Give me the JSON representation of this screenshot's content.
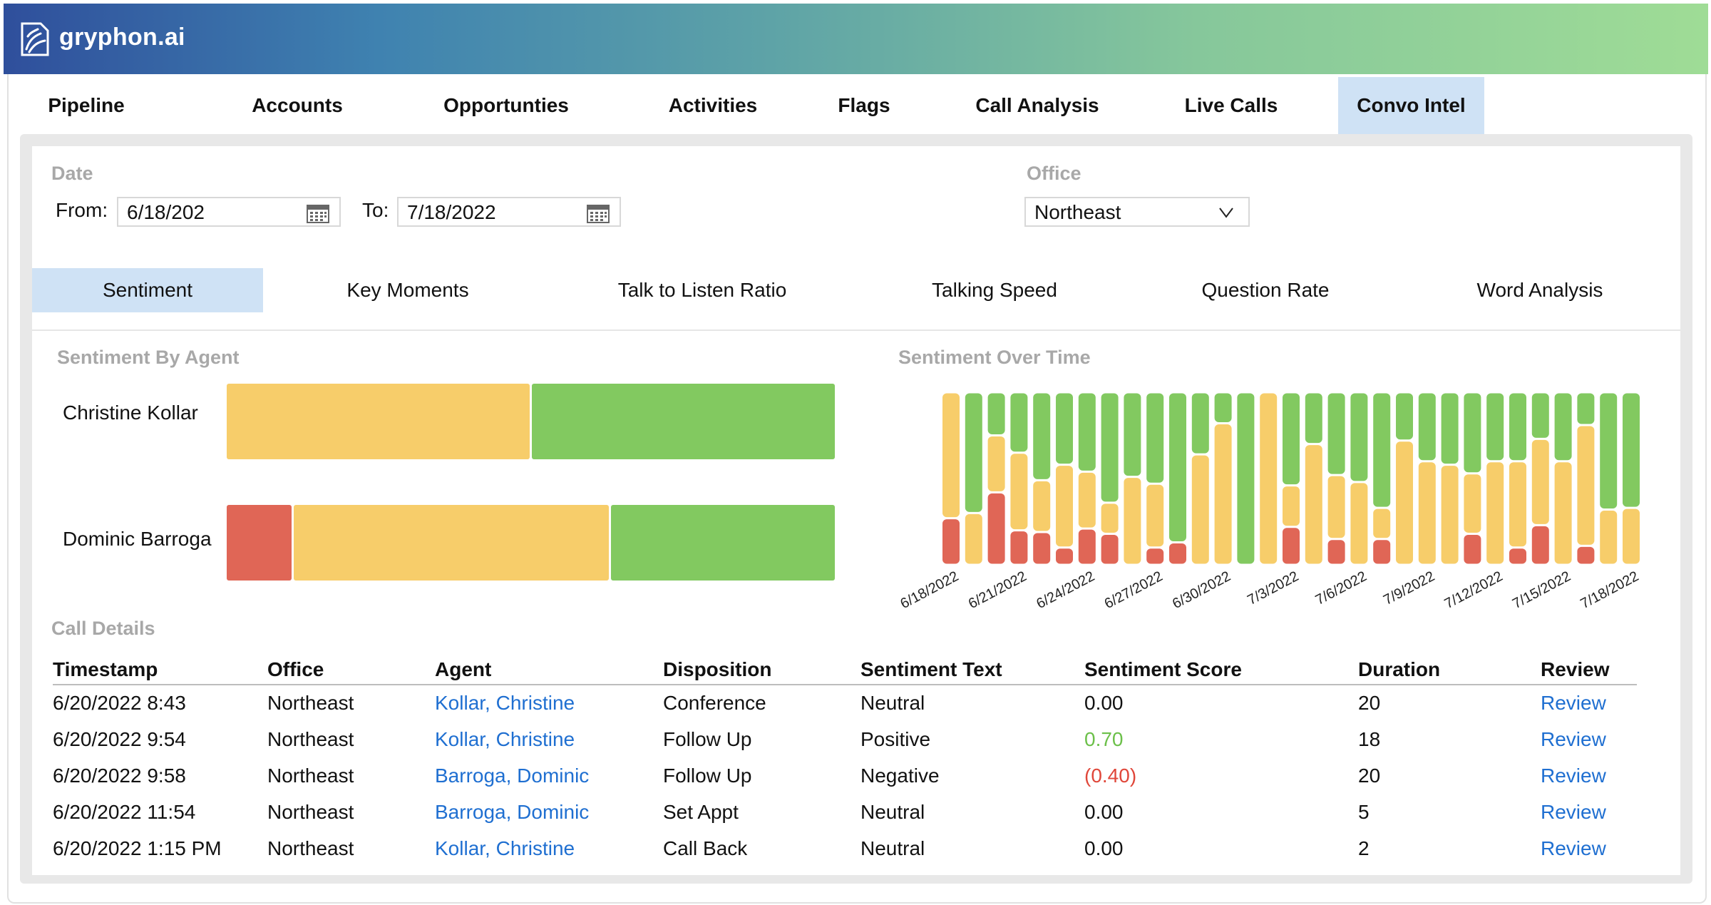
{
  "app": {
    "brand": "gryphon.ai"
  },
  "main_nav": {
    "tabs": [
      {
        "label": "Pipeline",
        "active": false
      },
      {
        "label": "Accounts",
        "active": false
      },
      {
        "label": "Opportunties",
        "active": false
      },
      {
        "label": "Activities",
        "active": false
      },
      {
        "label": "Flags",
        "active": false
      },
      {
        "label": "Call Analysis",
        "active": false
      },
      {
        "label": "Live Calls",
        "active": false
      },
      {
        "label": "Convo Intel",
        "active": true
      }
    ]
  },
  "filters": {
    "date_label": "Date",
    "from_label": "From:",
    "from_value": "6/18/202",
    "to_label": "To:",
    "to_value": "7/18/2022",
    "office_label": "Office",
    "office_value": "Northeast"
  },
  "sub_tabs": [
    {
      "label": "Sentiment",
      "active": true
    },
    {
      "label": "Key Moments",
      "active": false
    },
    {
      "label": "Talk to Listen Ratio",
      "active": false
    },
    {
      "label": "Talking Speed",
      "active": false
    },
    {
      "label": "Question Rate",
      "active": false
    },
    {
      "label": "Word Analysis",
      "active": false
    }
  ],
  "colors": {
    "negative": "#e06656",
    "neutral": "#f7cd6a",
    "positive": "#82c960",
    "link": "#1f6fd1",
    "active_tab": "#cfe2f5"
  },
  "sentiment_by_agent": {
    "title": "Sentiment By Agent",
    "chart_data": {
      "type": "bar",
      "stacked": true,
      "orientation": "horizontal",
      "categories": [
        "Christine Kollar",
        "Dominic Barroga"
      ],
      "series": [
        {
          "color": "#e06656",
          "values": [
            0,
            11
          ]
        },
        {
          "color": "#f7cd6a",
          "values": [
            50,
            52
          ]
        },
        {
          "color": "#82c960",
          "values": [
            50,
            37
          ]
        }
      ]
    }
  },
  "sentiment_over_time": {
    "title": "Sentiment Over Time",
    "chart_data": {
      "type": "bar",
      "stacked": true,
      "tick_labels": [
        "6/18/2022",
        "6/21/2022",
        "6/24/2022",
        "6/27/2022",
        "6/30/2022",
        "7/3/2022",
        "7/6/2022",
        "7/9/2022",
        "7/12/2022",
        "7/15/2022",
        "7/18/2022"
      ],
      "x": [
        "6/18/2022",
        "6/19/2022",
        "6/20/2022",
        "6/21/2022",
        "6/22/2022",
        "6/23/2022",
        "6/24/2022",
        "6/25/2022",
        "6/26/2022",
        "6/27/2022",
        "6/28/2022",
        "6/29/2022",
        "6/30/2022",
        "7/1/2022",
        "7/2/2022",
        "7/3/2022",
        "7/4/2022",
        "7/5/2022",
        "7/6/2022",
        "7/7/2022",
        "7/8/2022",
        "7/9/2022",
        "7/10/2022",
        "7/11/2022",
        "7/12/2022",
        "7/13/2022",
        "7/14/2022",
        "7/15/2022",
        "7/16/2022",
        "7/17/2022",
        "7/18/2022"
      ],
      "series": [
        {
          "color": "#e06656",
          "values": [
            27,
            0,
            42,
            20,
            19,
            10,
            21,
            18,
            0,
            10,
            13,
            0,
            0,
            0,
            0,
            22,
            0,
            15,
            0,
            15,
            0,
            0,
            0,
            18,
            0,
            10,
            23,
            0,
            11,
            0,
            0
          ]
        },
        {
          "color": "#f7cd6a",
          "values": [
            73,
            30,
            33,
            45,
            30,
            48,
            33,
            18,
            51,
            37,
            0,
            64,
            82,
            0,
            100,
            24,
            70,
            37,
            48,
            18,
            72,
            60,
            58,
            35,
            60,
            50,
            50,
            60,
            70,
            32,
            33
          ]
        },
        {
          "color": "#82c960",
          "values": [
            0,
            70,
            25,
            35,
            51,
            42,
            46,
            64,
            49,
            53,
            87,
            36,
            18,
            100,
            0,
            54,
            30,
            48,
            52,
            67,
            28,
            40,
            42,
            47,
            40,
            40,
            27,
            40,
            19,
            68,
            67
          ]
        }
      ]
    }
  },
  "call_details": {
    "title": "Call Details",
    "columns": [
      "Timestamp",
      "Office",
      "Agent",
      "Disposition",
      "Sentiment Text",
      "Sentiment Score",
      "Duration",
      "Review"
    ],
    "rows": [
      {
        "timestamp": "6/20/2022 8:43",
        "office": "Northeast",
        "agent": "Kollar, Christine",
        "disposition": "Conference",
        "sentiment_text": "Neutral",
        "score": "0.00",
        "score_type": "neutral",
        "duration": "20",
        "review": "Review"
      },
      {
        "timestamp": "6/20/2022 9:54",
        "office": "Northeast",
        "agent": "Kollar, Christine",
        "disposition": "Follow Up",
        "sentiment_text": "Positive",
        "score": "0.70",
        "score_type": "positive",
        "duration": "18",
        "review": "Review"
      },
      {
        "timestamp": "6/20/2022 9:58",
        "office": "Northeast",
        "agent": "Barroga, Dominic",
        "disposition": "Follow Up",
        "sentiment_text": "Negative",
        "score": "(0.40)",
        "score_type": "negative",
        "duration": "20",
        "review": "Review"
      },
      {
        "timestamp": "6/20/2022 11:54",
        "office": "Northeast",
        "agent": "Barroga, Dominic",
        "disposition": "Set Appt",
        "sentiment_text": "Neutral",
        "score": "0.00",
        "score_type": "neutral",
        "duration": "5",
        "review": "Review"
      },
      {
        "timestamp": "6/20/2022 1:15 PM",
        "office": "Northeast",
        "agent": "Kollar, Christine",
        "disposition": "Call Back",
        "sentiment_text": "Neutral",
        "score": "0.00",
        "score_type": "neutral",
        "duration": "2",
        "review": "Review"
      }
    ]
  }
}
